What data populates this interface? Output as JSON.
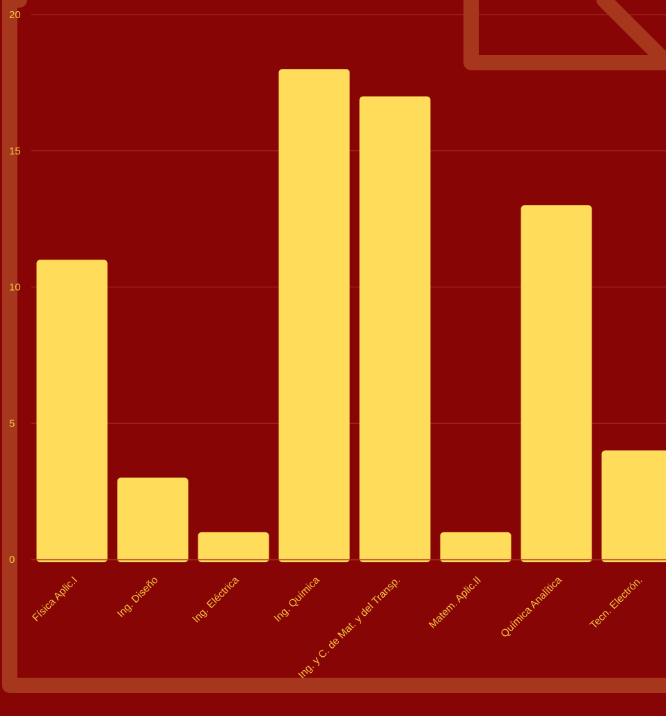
{
  "colors": {
    "background": "#880505",
    "bar": "#FFDC5A",
    "text": "#F4C542",
    "grid": "#A8321F",
    "decoration": "#A6371D"
  },
  "chart_data": {
    "type": "bar",
    "title": "",
    "xlabel": "",
    "ylabel": "",
    "categories": [
      "Física Aplic.I",
      "Ing. Diseño",
      "Ing. Eléctrica",
      "Ing. Química",
      "Ing. y C. de Mat. y del Transp.",
      "Matem. Aplic.II",
      "Química Analítica",
      "Tecn. Electrón."
    ],
    "values": [
      11,
      3,
      1,
      18,
      17,
      1,
      13,
      4
    ],
    "yticks": [
      "0",
      "5",
      "10",
      "15",
      "20"
    ],
    "ylim": [
      0,
      20
    ],
    "grid": true,
    "legend": "none"
  }
}
